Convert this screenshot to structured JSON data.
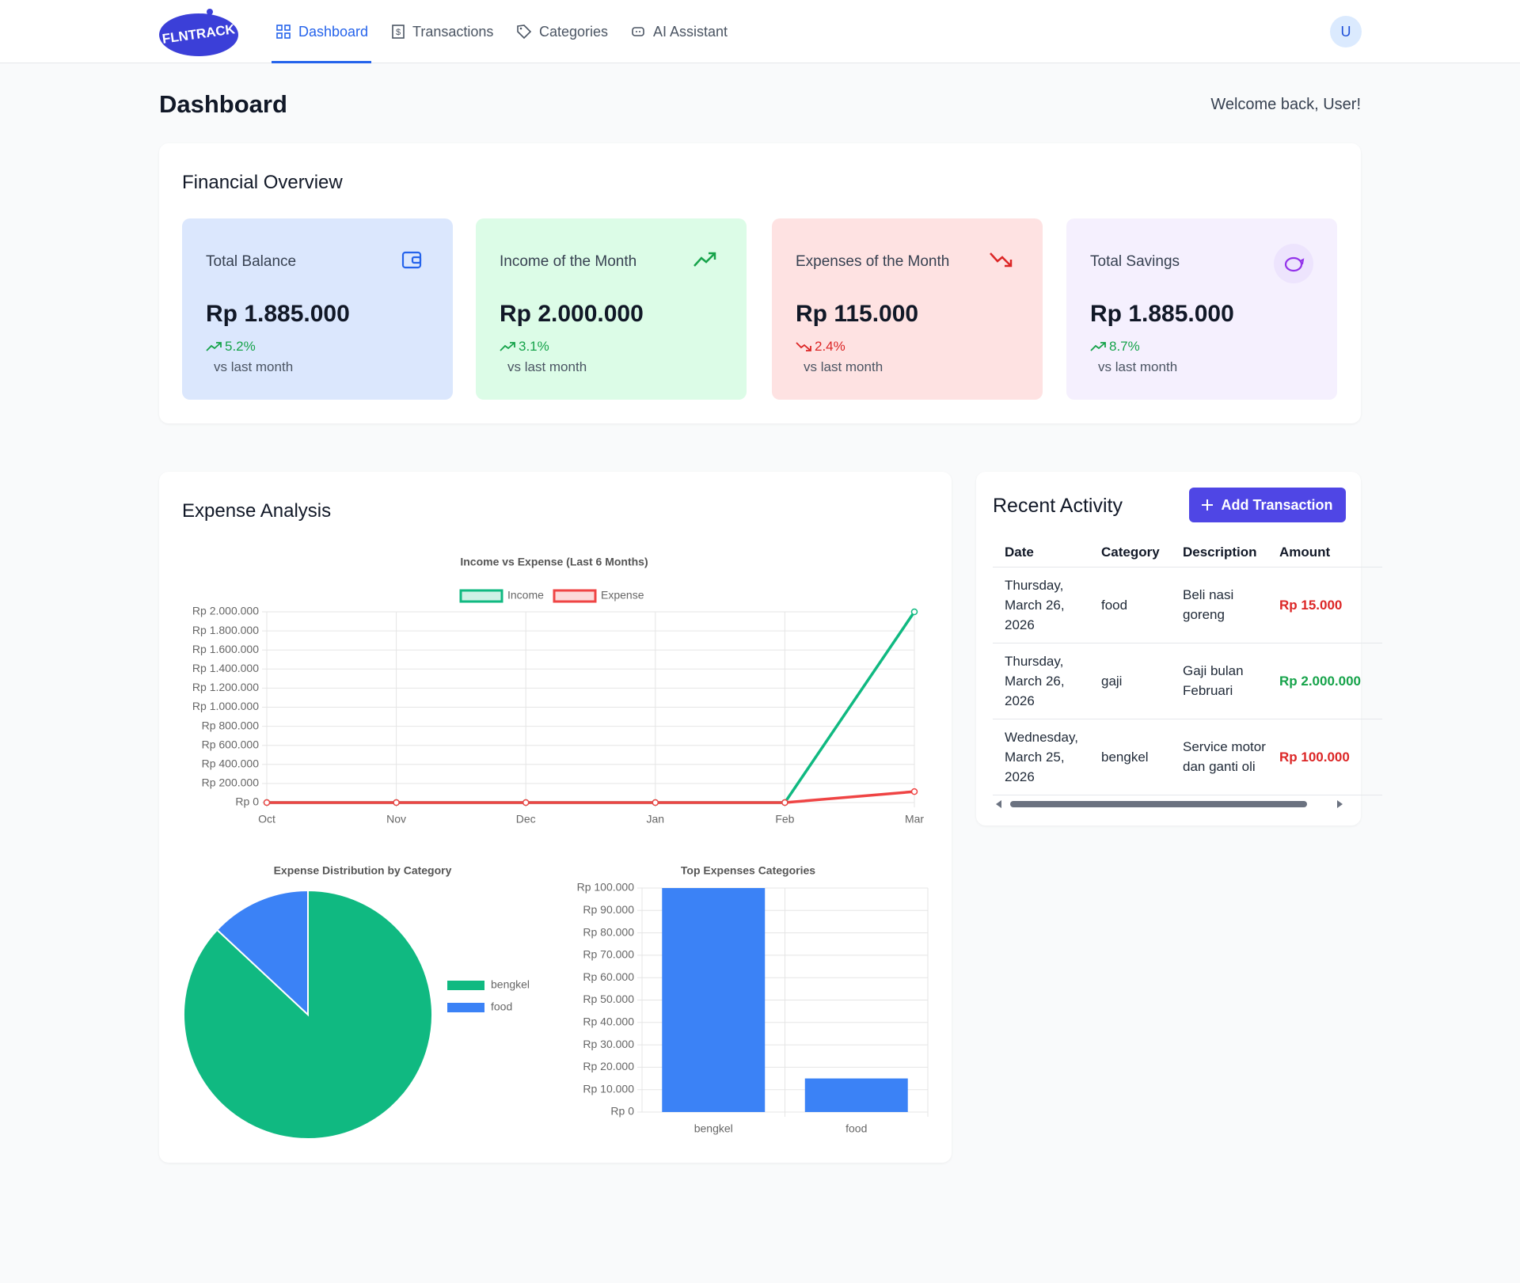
{
  "nav": {
    "logo": "FLNTRACK",
    "items": [
      "Dashboard",
      "Transactions",
      "Categories",
      "AI Assistant"
    ],
    "avatar": "U"
  },
  "header": {
    "title": "Dashboard",
    "welcome": "Welcome back, User!"
  },
  "overview": {
    "title": "Financial Overview",
    "cards": [
      {
        "title": "Total Balance",
        "value": "Rp 1.885.000",
        "change": "5.2%",
        "note": "vs last month"
      },
      {
        "title": "Income of the Month",
        "value": "Rp 2.000.000",
        "change": "3.1%",
        "note": "vs last month"
      },
      {
        "title": "Expenses of the Month",
        "value": "Rp 115.000",
        "change": "2.4%",
        "note": "vs last month"
      },
      {
        "title": "Total Savings",
        "value": "Rp 1.885.000",
        "change": "8.7%",
        "note": "vs last month"
      }
    ]
  },
  "analysis": {
    "title": "Expense Analysis"
  },
  "chart_data": [
    {
      "type": "line",
      "title": "Income vs Expense (Last 6 Months)",
      "categories": [
        "Oct",
        "Nov",
        "Dec",
        "Jan",
        "Feb",
        "Mar"
      ],
      "series": [
        {
          "name": "Income",
          "color": "#10b981",
          "values": [
            0,
            0,
            0,
            0,
            0,
            2000000
          ]
        },
        {
          "name": "Expense",
          "color": "#ef4444",
          "values": [
            0,
            0,
            0,
            0,
            0,
            115000
          ]
        }
      ],
      "ylim": [
        0,
        2000000
      ],
      "yticks": [
        {
          "value": 0,
          "label": "Rp 0"
        },
        {
          "value": 200000,
          "label": "Rp 200.000"
        },
        {
          "value": 400000,
          "label": "Rp 400.000"
        },
        {
          "value": 600000,
          "label": "Rp 600.000"
        },
        {
          "value": 800000,
          "label": "Rp 800.000"
        },
        {
          "value": 1000000,
          "label": "Rp 1.000.000"
        },
        {
          "value": 1200000,
          "label": "Rp 1.200.000"
        },
        {
          "value": 1400000,
          "label": "Rp 1.400.000"
        },
        {
          "value": 1600000,
          "label": "Rp 1.600.000"
        },
        {
          "value": 1800000,
          "label": "Rp 1.800.000"
        },
        {
          "value": 2000000,
          "label": "Rp 2.000.000"
        }
      ],
      "grid": true,
      "legend": "top"
    },
    {
      "type": "pie",
      "title": "Expense Distribution by Category",
      "categories": [
        "bengkel",
        "food"
      ],
      "values": [
        100000,
        15000
      ],
      "colors": [
        "#10b981",
        "#3b82f6"
      ],
      "legend": "right"
    },
    {
      "type": "bar",
      "title": "Top Expenses Categories",
      "categories": [
        "bengkel",
        "food"
      ],
      "values": [
        100000,
        15000
      ],
      "color": "#3b82f6",
      "ylim": [
        0,
        100000
      ],
      "yticks": [
        {
          "value": 0,
          "label": "Rp 0"
        },
        {
          "value": 10000,
          "label": "Rp 10.000"
        },
        {
          "value": 20000,
          "label": "Rp 20.000"
        },
        {
          "value": 30000,
          "label": "Rp 30.000"
        },
        {
          "value": 40000,
          "label": "Rp 40.000"
        },
        {
          "value": 50000,
          "label": "Rp 50.000"
        },
        {
          "value": 60000,
          "label": "Rp 60.000"
        },
        {
          "value": 70000,
          "label": "Rp 70.000"
        },
        {
          "value": 80000,
          "label": "Rp 80.000"
        },
        {
          "value": 90000,
          "label": "Rp 90.000"
        },
        {
          "value": 100000,
          "label": "Rp 100.000"
        }
      ],
      "grid": true
    }
  ],
  "activity": {
    "title": "Recent Activity",
    "button": "Add Transaction",
    "columns": [
      "Date",
      "Category",
      "Description",
      "Amount"
    ],
    "rows": [
      {
        "date": "Thursday, March 26, 2026",
        "category": "food",
        "description": "Beli nasi goreng",
        "amount": "Rp 15.000",
        "color": "#dc2626"
      },
      {
        "date": "Thursday, March 26, 2026",
        "category": "gaji",
        "description": "Gaji bulan Februari",
        "amount": "Rp 2.000.000",
        "color": "#16a34a"
      },
      {
        "date": "Wednesday, March 25, 2026",
        "category": "bengkel",
        "description": "Service motor dan ganti oli",
        "amount": "Rp 100.000",
        "color": "#dc2626"
      }
    ]
  }
}
